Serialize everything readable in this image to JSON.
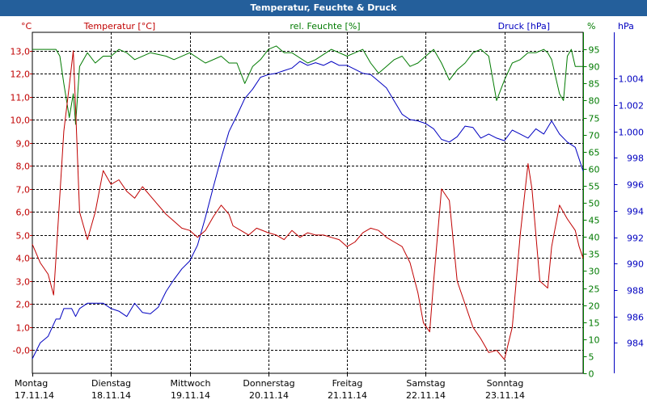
{
  "window": {
    "title": "Temperatur, Feuchte & Druck"
  },
  "colors": {
    "temperature": "#c00000",
    "humidity": "#007a00",
    "pressure": "#0000c0",
    "grid": "#000000",
    "titlebar": "#245f9b"
  },
  "chart_data": {
    "type": "line",
    "title": "Temperatur, Feuchte & Druck",
    "axes": {
      "temperature": {
        "label": "Temperatur [°C]",
        "unit": "°C",
        "range": [
          -1.0,
          13.8
        ],
        "ticks": [
          "-0,0",
          "1,0",
          "2,0",
          "3,0",
          "4,0",
          "5,0",
          "6,0",
          "7,0",
          "8,0",
          "9,0",
          "10,0",
          "11,0",
          "12,0",
          "13,0"
        ]
      },
      "humidity": {
        "label": "rel. Feuchte [%]",
        "unit": "%",
        "range": [
          0,
          100
        ],
        "ticks": [
          "0",
          "5",
          "10",
          "15",
          "20",
          "25",
          "30",
          "35",
          "40",
          "45",
          "50",
          "55",
          "60",
          "65",
          "70",
          "75",
          "80",
          "85",
          "90",
          "95"
        ]
      },
      "pressure": {
        "label": "Druck [hPa]",
        "unit": "hPa",
        "range": [
          981.7,
          1007.5
        ],
        "ticks": [
          "984",
          "986",
          "988",
          "990",
          "992",
          "994",
          "996",
          "998",
          "1.000",
          "1.002",
          "1.004"
        ]
      }
    },
    "x_range": [
      0,
      7.0
    ],
    "x_ticks": [
      {
        "day": "Montag",
        "date": "17.11.14"
      },
      {
        "day": "Dienstag",
        "date": "18.11.14"
      },
      {
        "day": "Mittwoch",
        "date": "19.11.14"
      },
      {
        "day": "Donnerstag",
        "date": "20.11.14"
      },
      {
        "day": "Freitag",
        "date": "21.11.14"
      },
      {
        "day": "Samstag",
        "date": "22.11.14"
      },
      {
        "day": "Sonntag",
        "date": "23.11.14"
      }
    ],
    "series": [
      {
        "name": "Temperatur",
        "unit": "°C",
        "x": [
          0.0,
          0.1,
          0.2,
          0.27,
          0.3,
          0.4,
          0.47,
          0.52,
          0.55,
          0.6,
          0.7,
          0.8,
          0.9,
          1.0,
          1.1,
          1.2,
          1.3,
          1.4,
          1.5,
          1.6,
          1.7,
          1.8,
          1.9,
          2.0,
          2.1,
          2.2,
          2.3,
          2.4,
          2.5,
          2.55,
          2.65,
          2.75,
          2.85,
          3.0,
          3.1,
          3.2,
          3.3,
          3.4,
          3.5,
          3.6,
          3.7,
          3.8,
          3.9,
          4.0,
          4.1,
          4.2,
          4.3,
          4.4,
          4.5,
          4.6,
          4.7,
          4.8,
          4.9,
          4.97,
          5.05,
          5.1,
          5.2,
          5.3,
          5.4,
          5.5,
          5.6,
          5.7,
          5.8,
          5.9,
          6.0,
          6.1,
          6.2,
          6.3,
          6.35,
          6.45,
          6.55,
          6.6,
          6.7,
          6.8,
          6.9,
          6.95,
          7.0
        ],
        "values": [
          4.6,
          3.8,
          3.3,
          2.4,
          4.0,
          9.5,
          11.5,
          13.0,
          10.5,
          6.0,
          4.8,
          6.0,
          7.8,
          7.2,
          7.4,
          6.9,
          6.6,
          7.1,
          6.7,
          6.3,
          5.9,
          5.6,
          5.3,
          5.2,
          4.9,
          5.2,
          5.8,
          6.3,
          5.9,
          5.4,
          5.2,
          5.0,
          5.3,
          5.1,
          5.0,
          4.8,
          5.2,
          4.9,
          5.1,
          5.0,
          5.0,
          4.9,
          4.8,
          4.5,
          4.7,
          5.1,
          5.3,
          5.2,
          4.9,
          4.7,
          4.5,
          3.8,
          2.5,
          1.2,
          0.8,
          3.0,
          7.0,
          6.5,
          3.0,
          2.0,
          1.0,
          0.5,
          -0.1,
          0.0,
          -0.4,
          1.0,
          5.0,
          8.1,
          7.0,
          3.0,
          2.7,
          4.5,
          6.3,
          5.7,
          5.2,
          4.5,
          4.0
        ]
      },
      {
        "name": "rel. Feuchte",
        "unit": "%",
        "x": [
          0.0,
          0.2,
          0.3,
          0.35,
          0.4,
          0.47,
          0.52,
          0.55,
          0.6,
          0.7,
          0.8,
          0.9,
          1.0,
          1.1,
          1.2,
          1.3,
          1.5,
          1.7,
          1.8,
          2.0,
          2.2,
          2.4,
          2.5,
          2.6,
          2.7,
          2.8,
          2.9,
          3.0,
          3.1,
          3.2,
          3.3,
          3.5,
          3.6,
          3.8,
          4.0,
          4.1,
          4.2,
          4.3,
          4.4,
          4.5,
          4.6,
          4.7,
          4.8,
          4.9,
          5.0,
          5.1,
          5.2,
          5.3,
          5.4,
          5.5,
          5.6,
          5.7,
          5.8,
          5.9,
          6.0,
          6.1,
          6.2,
          6.3,
          6.4,
          6.5,
          6.55,
          6.6,
          6.7,
          6.75,
          6.8,
          6.85,
          6.9,
          7.0
        ],
        "values": [
          95,
          95,
          95,
          93,
          85,
          75,
          82,
          73,
          90,
          94,
          91,
          93,
          93,
          95,
          94,
          92,
          94,
          93,
          92,
          94,
          91,
          93,
          91,
          91,
          85,
          90,
          92,
          95,
          96,
          94,
          94,
          91,
          92,
          95,
          93,
          94,
          95,
          91,
          88,
          90,
          92,
          93,
          90,
          91,
          93,
          95,
          91,
          86,
          89,
          91,
          94,
          95,
          93,
          80,
          86,
          91,
          92,
          94,
          94,
          95,
          94,
          92,
          82,
          80,
          93,
          95,
          90,
          90
        ]
      },
      {
        "name": "Druck",
        "unit": "hPa",
        "x": [
          0.0,
          0.1,
          0.2,
          0.3,
          0.35,
          0.4,
          0.5,
          0.55,
          0.6,
          0.7,
          0.8,
          0.9,
          1.0,
          1.1,
          1.2,
          1.3,
          1.4,
          1.5,
          1.6,
          1.7,
          1.8,
          1.9,
          2.0,
          2.1,
          2.2,
          2.3,
          2.4,
          2.5,
          2.6,
          2.7,
          2.8,
          2.9,
          3.0,
          3.1,
          3.2,
          3.3,
          3.4,
          3.5,
          3.6,
          3.7,
          3.8,
          3.9,
          4.0,
          4.1,
          4.2,
          4.3,
          4.4,
          4.5,
          4.6,
          4.7,
          4.8,
          4.9,
          5.0,
          5.1,
          5.2,
          5.3,
          5.4,
          5.5,
          5.6,
          5.7,
          5.8,
          5.9,
          6.0,
          6.1,
          6.2,
          6.3,
          6.4,
          6.5,
          6.6,
          6.7,
          6.8,
          6.9,
          7.0
        ],
        "values": [
          982.8,
          984.0,
          984.5,
          985.8,
          985.8,
          986.6,
          986.6,
          986.0,
          986.6,
          987.0,
          987.0,
          987.0,
          986.6,
          986.4,
          986.0,
          987.0,
          986.3,
          986.2,
          986.7,
          987.9,
          988.8,
          989.6,
          990.2,
          991.4,
          993.5,
          995.8,
          998.0,
          1000.0,
          1001.2,
          1002.5,
          1003.2,
          1004.1,
          1004.3,
          1004.4,
          1004.6,
          1004.8,
          1005.3,
          1005.0,
          1005.2,
          1005.0,
          1005.3,
          1005.0,
          1005.0,
          1004.7,
          1004.4,
          1004.3,
          1003.8,
          1003.3,
          1002.3,
          1001.3,
          1000.9,
          1000.8,
          1000.6,
          1000.2,
          999.4,
          999.2,
          999.6,
          1000.4,
          1000.3,
          999.5,
          999.8,
          999.5,
          999.3,
          1000.1,
          999.8,
          999.5,
          1000.2,
          999.8,
          1000.8,
          999.8,
          999.2,
          998.8,
          997.0
        ]
      }
    ]
  }
}
